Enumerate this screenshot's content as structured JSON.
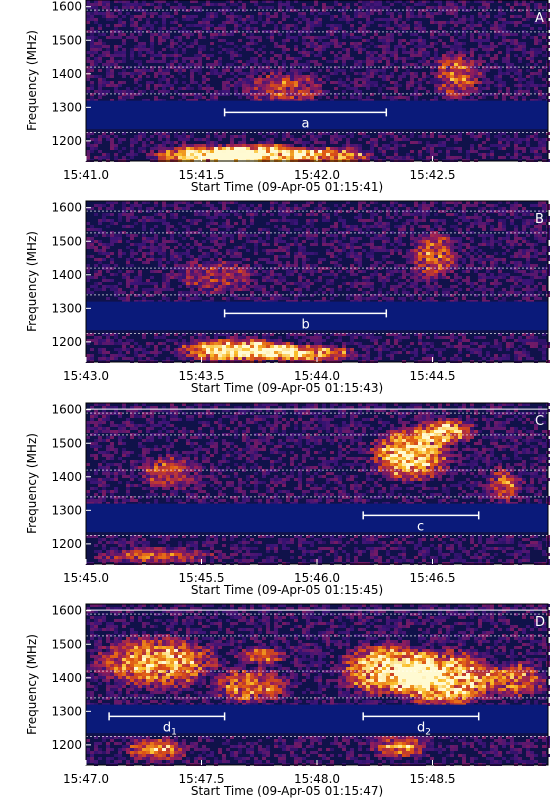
{
  "chart_data": [
    {
      "type": "heatmap",
      "panel_label": "A",
      "xlabel": "Start Time (09-Apr-05 01:15:41)",
      "ylabel": "Frequency (MHz)",
      "x_ticks": [
        "15:41.0",
        "15:41.5",
        "15:42.0",
        "15:42.5"
      ],
      "y_ticks": [
        "1200",
        "1300",
        "1400",
        "1500",
        "1600"
      ],
      "ylim": [
        1140,
        1620
      ],
      "markers": [
        {
          "label": "a",
          "sub": "",
          "x_start": 0.6,
          "x_end": 1.3,
          "freq": 1285
        }
      ],
      "top_line": false,
      "bursts": [
        {
          "t": 0.5,
          "f": 1160,
          "intensity": 0.95,
          "width": 0.25,
          "height": 35
        },
        {
          "t": 0.75,
          "f": 1165,
          "intensity": 1.0,
          "width": 0.25,
          "height": 35
        },
        {
          "t": 1.05,
          "f": 1160,
          "intensity": 0.8,
          "width": 0.2,
          "height": 30
        },
        {
          "t": 0.85,
          "f": 1360,
          "intensity": 0.45,
          "width": 0.2,
          "height": 60
        },
        {
          "t": 1.6,
          "f": 1400,
          "intensity": 0.5,
          "width": 0.12,
          "height": 80
        }
      ]
    },
    {
      "type": "heatmap",
      "panel_label": "B",
      "xlabel": "Start Time (09-Apr-05 01:15:43)",
      "ylabel": "Frequency (MHz)",
      "x_ticks": [
        "15:43.0",
        "15:43.5",
        "15:44.0",
        "15:44.5"
      ],
      "y_ticks": [
        "1200",
        "1300",
        "1400",
        "1500",
        "1600"
      ],
      "ylim": [
        1140,
        1620
      ],
      "markers": [
        {
          "label": "b",
          "sub": "",
          "x_start": 0.6,
          "x_end": 1.3,
          "freq": 1285
        }
      ],
      "top_line": false,
      "bursts": [
        {
          "t": 0.65,
          "f": 1180,
          "intensity": 0.95,
          "width": 0.3,
          "height": 40
        },
        {
          "t": 0.95,
          "f": 1170,
          "intensity": 0.75,
          "width": 0.25,
          "height": 30
        },
        {
          "t": 1.5,
          "f": 1460,
          "intensity": 0.55,
          "width": 0.12,
          "height": 80
        },
        {
          "t": 0.55,
          "f": 1400,
          "intensity": 0.35,
          "width": 0.2,
          "height": 60
        }
      ]
    },
    {
      "type": "heatmap",
      "panel_label": "C",
      "xlabel": "Start Time (09-Apr-05 01:15:45)",
      "ylabel": "Frequency (MHz)",
      "x_ticks": [
        "15:45.0",
        "15:45.5",
        "15:46.0",
        "15:46.5"
      ],
      "y_ticks": [
        "1200",
        "1300",
        "1400",
        "1500",
        "1600"
      ],
      "ylim": [
        1140,
        1620
      ],
      "markers": [
        {
          "label": "c",
          "sub": "",
          "x_start": 1.2,
          "x_end": 1.7,
          "freq": 1285
        }
      ],
      "top_line": true,
      "bursts": [
        {
          "t": 1.4,
          "f": 1470,
          "intensity": 0.9,
          "width": 0.2,
          "height": 90
        },
        {
          "t": 1.55,
          "f": 1540,
          "intensity": 0.85,
          "width": 0.15,
          "height": 40
        },
        {
          "t": 0.35,
          "f": 1420,
          "intensity": 0.45,
          "width": 0.15,
          "height": 60
        },
        {
          "t": 0.3,
          "f": 1170,
          "intensity": 0.45,
          "width": 0.3,
          "height": 30
        },
        {
          "t": 1.8,
          "f": 1380,
          "intensity": 0.5,
          "width": 0.1,
          "height": 60
        }
      ]
    },
    {
      "type": "heatmap",
      "panel_label": "D",
      "xlabel": "Start Time (09-Apr-05 01:15:47)",
      "ylabel": "Frequency (MHz)",
      "x_ticks": [
        "15:47.0",
        "15:47.5",
        "15:48.0",
        "15:48.5"
      ],
      "y_ticks": [
        "1200",
        "1300",
        "1400",
        "1500",
        "1600"
      ],
      "ylim": [
        1140,
        1620
      ],
      "markers": [
        {
          "label": "d",
          "sub": "1",
          "x_start": 0.1,
          "x_end": 0.6,
          "freq": 1285
        },
        {
          "label": "d",
          "sub": "2",
          "x_start": 1.2,
          "x_end": 1.7,
          "freq": 1285
        }
      ],
      "top_line": true,
      "bursts": [
        {
          "t": 0.3,
          "f": 1450,
          "intensity": 0.75,
          "width": 0.3,
          "height": 90
        },
        {
          "t": 0.7,
          "f": 1380,
          "intensity": 0.6,
          "width": 0.2,
          "height": 60
        },
        {
          "t": 0.3,
          "f": 1190,
          "intensity": 0.7,
          "width": 0.15,
          "height": 40
        },
        {
          "t": 0.75,
          "f": 1470,
          "intensity": 0.6,
          "width": 0.12,
          "height": 30
        },
        {
          "t": 1.3,
          "f": 1430,
          "intensity": 0.85,
          "width": 0.25,
          "height": 90
        },
        {
          "t": 1.55,
          "f": 1400,
          "intensity": 0.9,
          "width": 0.25,
          "height": 100
        },
        {
          "t": 1.85,
          "f": 1400,
          "intensity": 0.6,
          "width": 0.15,
          "height": 60
        },
        {
          "t": 1.35,
          "f": 1200,
          "intensity": 0.6,
          "width": 0.15,
          "height": 40
        }
      ]
    }
  ],
  "colors": {
    "background": "#0a1a7a",
    "band": "#0a1a7a",
    "line": "#ffffff"
  }
}
